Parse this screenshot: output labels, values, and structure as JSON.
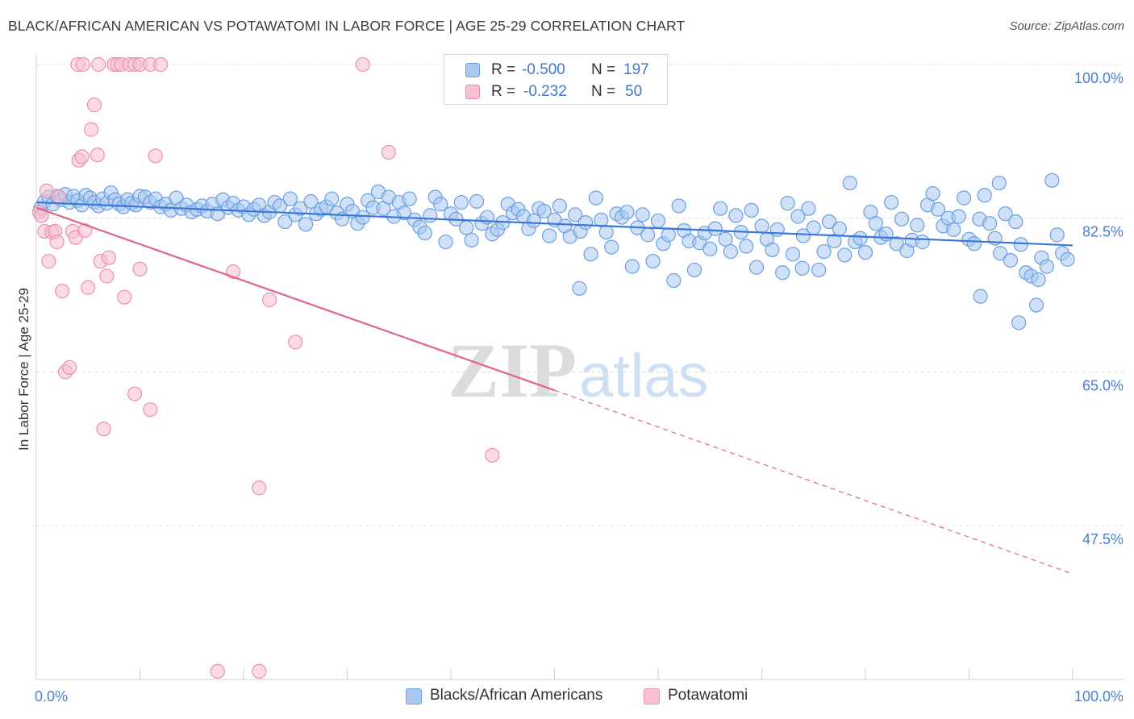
{
  "header": {
    "title": "BLACK/AFRICAN AMERICAN VS POTAWATOMI IN LABOR FORCE | AGE 25-29 CORRELATION CHART",
    "source": "Source: ZipAtlas.com"
  },
  "watermark": {
    "zip": "ZIP",
    "atlas": "atlas"
  },
  "legend": {
    "r_label": "R =",
    "n_label": "N =",
    "rows": [
      {
        "r": "-0.500",
        "n": "197",
        "fill": "#aac8f0",
        "stroke": "#6a9fe0"
      },
      {
        "r": "-0.232",
        "n": "50",
        "fill": "#f8c0d0",
        "stroke": "#ec8fab"
      }
    ]
  },
  "bottom_legend": {
    "items": [
      {
        "label": "Blacks/African Americans"
      },
      {
        "label": "Potawatomi"
      }
    ]
  },
  "chart_data": {
    "type": "scatter",
    "title": "BLACK/AFRICAN AMERICAN VS POTAWATOMI IN LABOR FORCE | AGE 25-29 CORRELATION CHART",
    "xlabel": "",
    "ylabel": "In Labor Force | Age 25-29",
    "xlim": [
      0,
      100
    ],
    "ylim": [
      30,
      100
    ],
    "x_tick_labels": [
      "0.0%",
      "100.0%"
    ],
    "y_ticks": [
      100.0,
      82.5,
      65.0,
      47.5
    ],
    "y_tick_labels": [
      "100.0%",
      "82.5%",
      "65.0%",
      "47.5%"
    ],
    "grid": true,
    "legend_placement": "top-center",
    "colors": {
      "blue": "#3a78d8",
      "pink": "#e0648c",
      "tick": "#4a7fd0"
    },
    "series": [
      {
        "name": "Blacks/African Americans",
        "color": "#6a9fe0",
        "fill": "#aac8f0",
        "trend": {
          "x": [
            0,
            100
          ],
          "y": [
            84.3,
            79.4
          ]
        },
        "points": [
          [
            0.4,
            83.6
          ],
          [
            0.8,
            84.4
          ],
          [
            1.2,
            84.9
          ],
          [
            1.6,
            84.1
          ],
          [
            2.0,
            85.0
          ],
          [
            2.4,
            84.6
          ],
          [
            2.8,
            85.2
          ],
          [
            3.2,
            84.3
          ],
          [
            3.6,
            85.0
          ],
          [
            4.0,
            84.5
          ],
          [
            4.4,
            84.0
          ],
          [
            4.8,
            85.1
          ],
          [
            5.2,
            84.8
          ],
          [
            5.6,
            84.3
          ],
          [
            6.0,
            83.9
          ],
          [
            6.4,
            84.7
          ],
          [
            6.8,
            84.2
          ],
          [
            7.2,
            85.4
          ],
          [
            7.6,
            84.6
          ],
          [
            8.0,
            84.1
          ],
          [
            8.4,
            83.8
          ],
          [
            8.8,
            84.6
          ],
          [
            9.2,
            84.2
          ],
          [
            9.6,
            84.0
          ],
          [
            10.0,
            85.0
          ],
          [
            10.5,
            84.9
          ],
          [
            11.0,
            84.3
          ],
          [
            11.5,
            84.7
          ],
          [
            12.0,
            83.8
          ],
          [
            12.5,
            84.1
          ],
          [
            13.0,
            83.4
          ],
          [
            13.5,
            84.8
          ],
          [
            14.0,
            83.6
          ],
          [
            14.5,
            84.0
          ],
          [
            15.0,
            83.2
          ],
          [
            15.5,
            83.5
          ],
          [
            16.0,
            83.9
          ],
          [
            16.5,
            83.3
          ],
          [
            17.0,
            84.1
          ],
          [
            17.5,
            83.0
          ],
          [
            18.0,
            84.6
          ],
          [
            18.5,
            83.7
          ],
          [
            19.0,
            84.2
          ],
          [
            19.5,
            83.4
          ],
          [
            20.0,
            83.8
          ],
          [
            20.5,
            82.9
          ],
          [
            21.0,
            83.5
          ],
          [
            21.5,
            84.0
          ],
          [
            22.0,
            82.8
          ],
          [
            22.5,
            83.2
          ],
          [
            23.0,
            84.3
          ],
          [
            23.5,
            83.9
          ],
          [
            24.0,
            82.1
          ],
          [
            24.5,
            84.7
          ],
          [
            25.0,
            82.9
          ],
          [
            25.5,
            83.6
          ],
          [
            26.0,
            81.8
          ],
          [
            26.5,
            84.4
          ],
          [
            27.0,
            83.0
          ],
          [
            27.5,
            83.5
          ],
          [
            28.0,
            83.8
          ],
          [
            28.5,
            84.7
          ],
          [
            29.0,
            83.1
          ],
          [
            29.5,
            82.4
          ],
          [
            30.0,
            84.1
          ],
          [
            30.5,
            83.3
          ],
          [
            31.0,
            81.9
          ],
          [
            31.5,
            82.6
          ],
          [
            32.0,
            84.5
          ],
          [
            32.5,
            83.7
          ],
          [
            33.0,
            85.5
          ],
          [
            33.5,
            83.6
          ],
          [
            34.0,
            84.9
          ],
          [
            34.5,
            82.7
          ],
          [
            35.0,
            84.3
          ],
          [
            35.5,
            83.1
          ],
          [
            36.0,
            84.7
          ],
          [
            36.5,
            82.3
          ],
          [
            37.0,
            81.5
          ],
          [
            37.5,
            80.8
          ],
          [
            38.0,
            82.8
          ],
          [
            38.5,
            84.9
          ],
          [
            39.0,
            84.1
          ],
          [
            39.5,
            79.8
          ],
          [
            40.0,
            83.0
          ],
          [
            40.5,
            82.4
          ],
          [
            41.0,
            84.3
          ],
          [
            41.5,
            81.4
          ],
          [
            42.0,
            80.0
          ],
          [
            42.5,
            84.4
          ],
          [
            43.0,
            81.9
          ],
          [
            43.5,
            82.6
          ],
          [
            44.0,
            80.7
          ],
          [
            44.5,
            81.2
          ],
          [
            45.0,
            82.0
          ],
          [
            45.5,
            84.1
          ],
          [
            46.0,
            83.1
          ],
          [
            46.5,
            83.5
          ],
          [
            47.0,
            82.7
          ],
          [
            47.5,
            81.3
          ],
          [
            48.0,
            82.2
          ],
          [
            48.5,
            83.6
          ],
          [
            49.0,
            83.3
          ],
          [
            49.5,
            80.5
          ],
          [
            50.0,
            82.3
          ],
          [
            50.5,
            83.9
          ],
          [
            51.0,
            81.6
          ],
          [
            51.5,
            80.4
          ],
          [
            52.0,
            82.9
          ],
          [
            52.5,
            81.0
          ],
          [
            53.0,
            82.0
          ],
          [
            53.5,
            78.4
          ],
          [
            54.0,
            84.8
          ],
          [
            54.5,
            82.3
          ],
          [
            55.0,
            80.9
          ],
          [
            55.5,
            79.2
          ],
          [
            56.0,
            83.0
          ],
          [
            56.5,
            82.6
          ],
          [
            57.0,
            83.2
          ],
          [
            57.5,
            77.0
          ],
          [
            58.0,
            81.4
          ],
          [
            58.5,
            82.9
          ],
          [
            59.0,
            80.6
          ],
          [
            59.5,
            77.6
          ],
          [
            60.0,
            82.2
          ],
          [
            60.5,
            79.6
          ],
          [
            61.0,
            80.6
          ],
          [
            61.5,
            75.4
          ],
          [
            62.0,
            83.9
          ],
          [
            62.5,
            81.1
          ],
          [
            63.0,
            79.9
          ],
          [
            63.5,
            76.6
          ],
          [
            64.0,
            79.7
          ],
          [
            64.5,
            80.8
          ],
          [
            65.0,
            79.0
          ],
          [
            65.5,
            81.3
          ],
          [
            66.0,
            83.6
          ],
          [
            66.5,
            80.1
          ],
          [
            67.0,
            78.7
          ],
          [
            67.5,
            82.8
          ],
          [
            68.0,
            80.9
          ],
          [
            68.5,
            79.3
          ],
          [
            69.0,
            83.4
          ],
          [
            69.5,
            76.9
          ],
          [
            70.0,
            81.6
          ],
          [
            70.5,
            80.1
          ],
          [
            71.0,
            78.9
          ],
          [
            71.5,
            81.2
          ],
          [
            72.0,
            76.3
          ],
          [
            72.5,
            84.2
          ],
          [
            73.0,
            78.4
          ],
          [
            73.5,
            82.7
          ],
          [
            74.0,
            80.5
          ],
          [
            74.5,
            83.6
          ],
          [
            75.0,
            81.4
          ],
          [
            75.5,
            76.6
          ],
          [
            76.0,
            78.7
          ],
          [
            76.5,
            82.1
          ],
          [
            77.0,
            79.9
          ],
          [
            77.5,
            81.3
          ],
          [
            78.0,
            78.3
          ],
          [
            78.5,
            86.5
          ],
          [
            79.0,
            79.8
          ],
          [
            79.5,
            80.2
          ],
          [
            80.0,
            78.6
          ],
          [
            80.5,
            83.2
          ],
          [
            81.0,
            81.9
          ],
          [
            81.5,
            80.3
          ],
          [
            82.0,
            80.7
          ],
          [
            82.5,
            84.3
          ],
          [
            83.0,
            79.6
          ],
          [
            83.5,
            82.4
          ],
          [
            84.0,
            78.8
          ],
          [
            84.5,
            80.0
          ],
          [
            85.0,
            81.7
          ],
          [
            85.5,
            79.8
          ],
          [
            86.0,
            84.0
          ],
          [
            86.5,
            85.3
          ],
          [
            87.0,
            83.5
          ],
          [
            87.5,
            81.6
          ],
          [
            88.0,
            82.5
          ],
          [
            88.5,
            81.2
          ],
          [
            89.0,
            82.7
          ],
          [
            89.5,
            84.8
          ],
          [
            90.0,
            80.1
          ],
          [
            90.5,
            79.6
          ],
          [
            91.0,
            82.4
          ],
          [
            91.5,
            85.1
          ],
          [
            92.0,
            81.9
          ],
          [
            92.5,
            80.2
          ],
          [
            93.0,
            78.5
          ],
          [
            93.5,
            83.0
          ],
          [
            94.0,
            77.7
          ],
          [
            94.5,
            82.1
          ],
          [
            95.0,
            79.5
          ],
          [
            95.5,
            76.3
          ],
          [
            96.0,
            75.9
          ],
          [
            96.5,
            72.6
          ],
          [
            97.0,
            78.0
          ],
          [
            97.5,
            77.0
          ],
          [
            98.0,
            86.8
          ],
          [
            98.5,
            80.6
          ],
          [
            99.0,
            78.5
          ],
          [
            99.5,
            77.8
          ],
          [
            94.8,
            70.6
          ],
          [
            91.1,
            73.6
          ],
          [
            92.9,
            86.5
          ],
          [
            96.7,
            75.5
          ],
          [
            73.9,
            76.8
          ],
          [
            52.4,
            74.5
          ]
        ]
      },
      {
        "name": "Potawatomi",
        "color": "#ec8fab",
        "fill": "#f8c0d0",
        "trend": {
          "x": [
            0,
            50
          ],
          "y": [
            83.7,
            62.9
          ]
        },
        "trend_dashed": {
          "x": [
            50,
            100
          ],
          "y": [
            62.9,
            42.0
          ]
        },
        "points": [
          [
            0.3,
            83.2
          ],
          [
            0.5,
            82.8
          ],
          [
            0.8,
            81.0
          ],
          [
            1.0,
            85.6
          ],
          [
            1.2,
            77.6
          ],
          [
            1.5,
            80.9
          ],
          [
            1.8,
            81.0
          ],
          [
            2.0,
            79.8
          ],
          [
            2.2,
            84.9
          ],
          [
            2.5,
            74.2
          ],
          [
            2.8,
            65.0
          ],
          [
            3.2,
            65.5
          ],
          [
            3.5,
            81.0
          ],
          [
            3.8,
            80.3
          ],
          [
            4.1,
            89.1
          ],
          [
            4.4,
            89.5
          ],
          [
            4.7,
            81.1
          ],
          [
            5.0,
            74.6
          ],
          [
            5.3,
            92.6
          ],
          [
            5.6,
            95.4
          ],
          [
            5.9,
            89.7
          ],
          [
            6.2,
            77.6
          ],
          [
            6.5,
            58.5
          ],
          [
            6.8,
            75.9
          ],
          [
            4.0,
            100
          ],
          [
            4.5,
            100
          ],
          [
            6.0,
            100
          ],
          [
            7.5,
            100
          ],
          [
            7.8,
            100
          ],
          [
            8.2,
            100
          ],
          [
            9.0,
            100
          ],
          [
            9.5,
            100
          ],
          [
            10.0,
            100
          ],
          [
            11.0,
            100
          ],
          [
            12.0,
            100
          ],
          [
            7.0,
            78.0
          ],
          [
            8.5,
            73.5
          ],
          [
            9.5,
            62.5
          ],
          [
            10.0,
            76.7
          ],
          [
            11.0,
            60.7
          ],
          [
            11.5,
            89.6
          ],
          [
            19.0,
            76.4
          ],
          [
            22.5,
            73.2
          ],
          [
            25.0,
            68.4
          ],
          [
            34.0,
            90.0
          ],
          [
            44.0,
            55.5
          ],
          [
            21.5,
            51.8
          ],
          [
            17.5,
            30.9
          ],
          [
            21.5,
            30.9
          ],
          [
            31.5,
            100
          ]
        ]
      }
    ]
  }
}
